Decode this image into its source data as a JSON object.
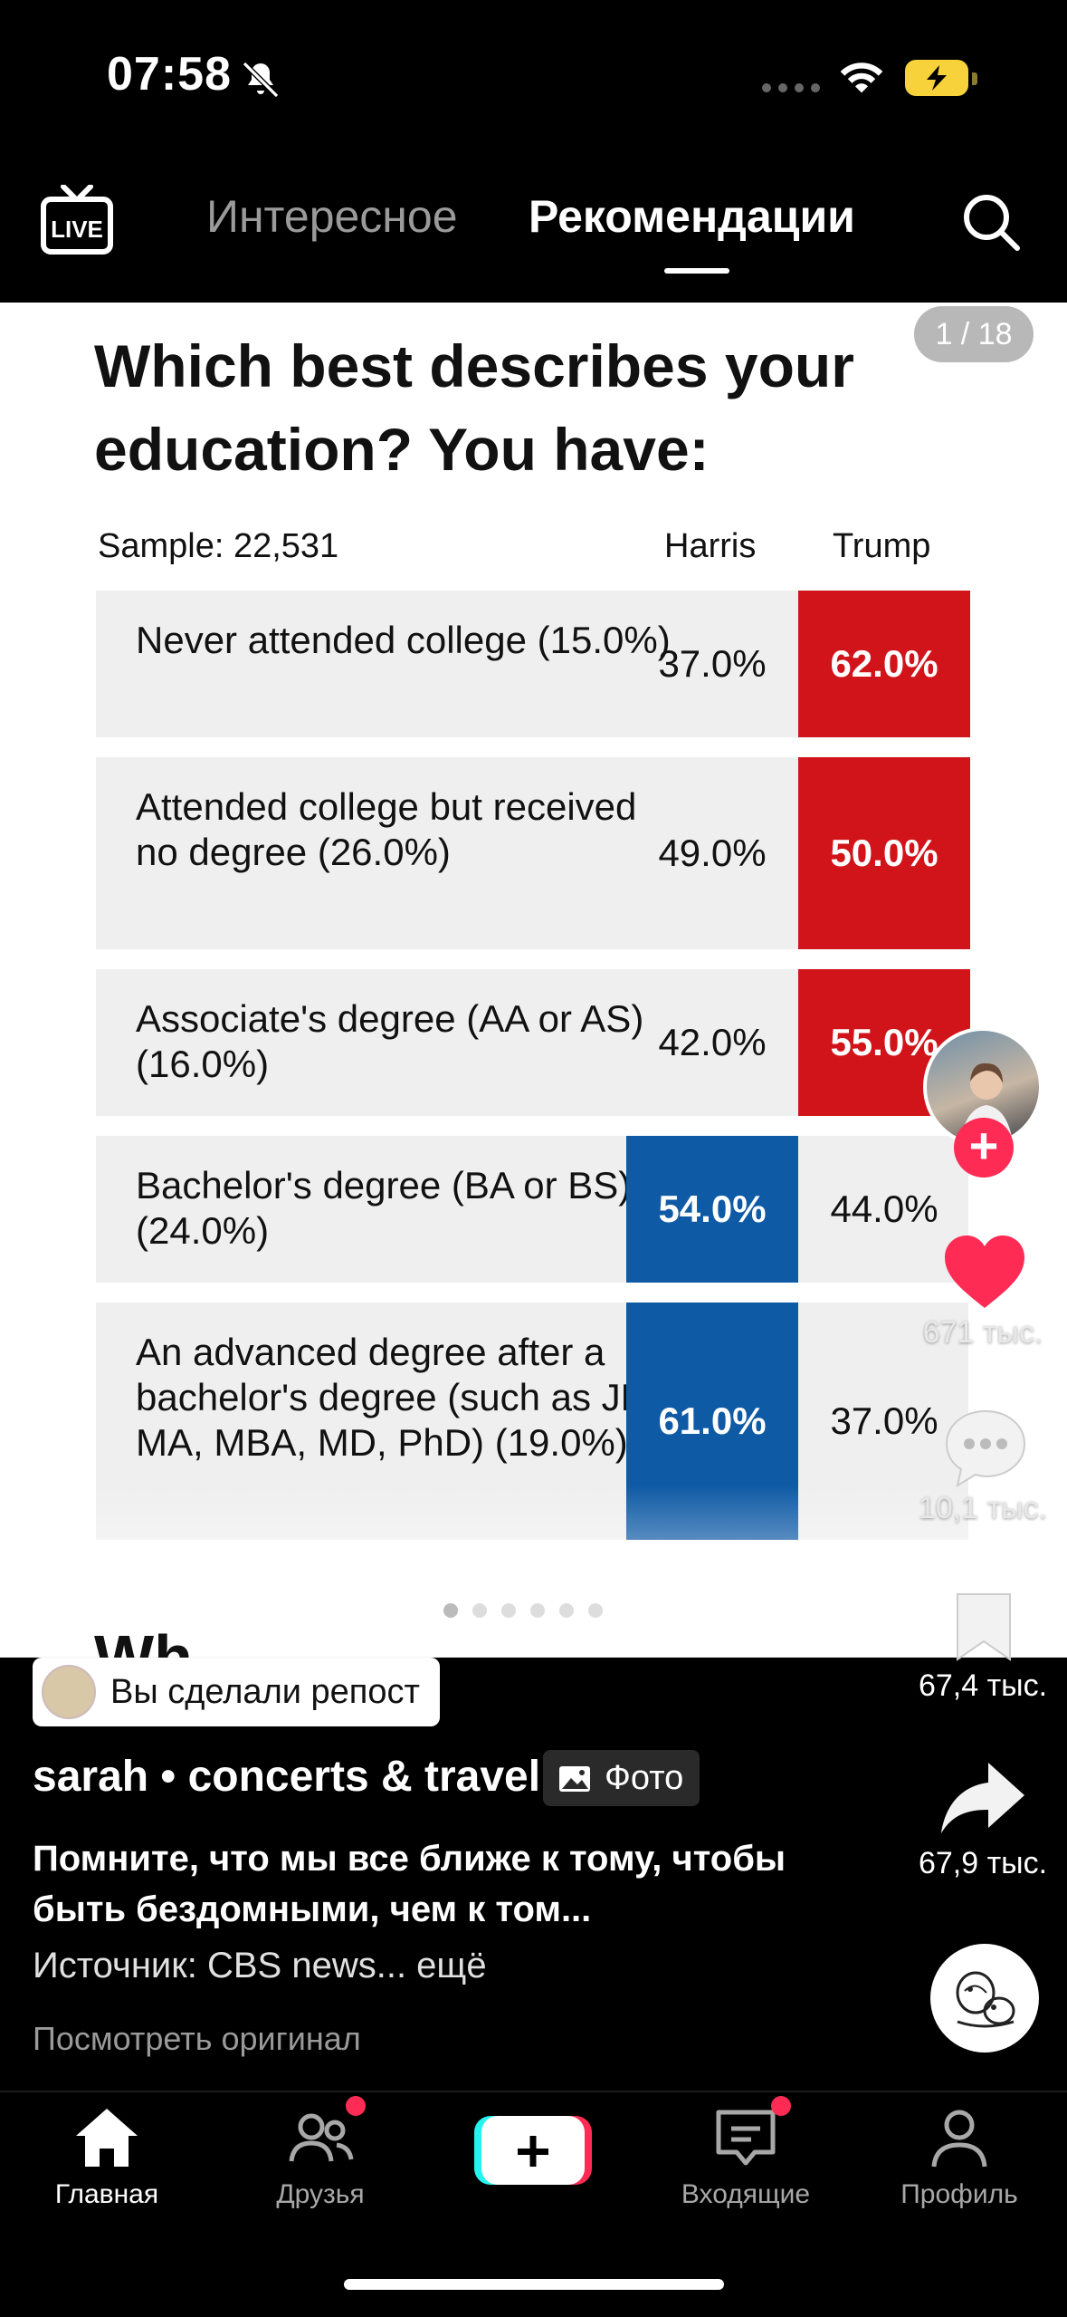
{
  "status_bar": {
    "time": "07:58",
    "battery_level": "charging"
  },
  "top_nav": {
    "live_label": "LIVE",
    "tabs": [
      {
        "label": "Интересное",
        "active": false
      },
      {
        "label": "Рекомендации",
        "active": true
      }
    ]
  },
  "post": {
    "counter": "1 / 18",
    "table": {
      "title": "Which best describes your education? You have:",
      "sample": "Sample: 22,531",
      "columns": [
        "Harris",
        "Trump"
      ],
      "rows": [
        {
          "label": "Never attended college (15.0%)",
          "harris": "37.0%",
          "trump": "62.0%",
          "winner": "trump"
        },
        {
          "label": "Attended college but received no degree (26.0%)",
          "harris": "49.0%",
          "trump": "50.0%",
          "winner": "trump"
        },
        {
          "label": "Associate's degree (AA or AS) (16.0%)",
          "harris": "42.0%",
          "trump": "55.0%",
          "winner": "trump"
        },
        {
          "label": "Bachelor's degree (BA or BS) (24.0%)",
          "harris": "54.0%",
          "trump": "44.0%",
          "winner": "harris"
        },
        {
          "label": "An advanced degree after a bachelor's degree (such as JD, MA, MBA, MD, PhD) (19.0%)",
          "harris": "61.0%",
          "trump": "37.0%",
          "winner": "harris"
        }
      ],
      "colors": {
        "trump": "#d0141a",
        "harris": "#0f5aa5"
      }
    },
    "next_slide_peek": "Wh…",
    "slide_dots": 6,
    "slide_active": 0
  },
  "actions": {
    "likes": "671 тыс.",
    "comments": "10,1 тыс.",
    "saves": "67,4 тыс.",
    "shares": "67,9 тыс."
  },
  "overlay": {
    "repost_label": "Вы сделали репост",
    "author": "sarah • concerts & travel",
    "photo_tag": "Фото",
    "caption": "Помните, что мы все ближе к тому, чтобы быть бездомными, чем к том...",
    "source": "Источник: CBS news... ещё",
    "view_original": "Посмотреть оригинал"
  },
  "tabbar": {
    "items": [
      {
        "label": "Главная",
        "active": true
      },
      {
        "label": "Друзья",
        "active": false,
        "badge": true
      },
      {
        "label": "Входящие",
        "active": false,
        "badge": true
      },
      {
        "label": "Профиль",
        "active": false
      }
    ]
  },
  "accent_color": "#fe2c55"
}
